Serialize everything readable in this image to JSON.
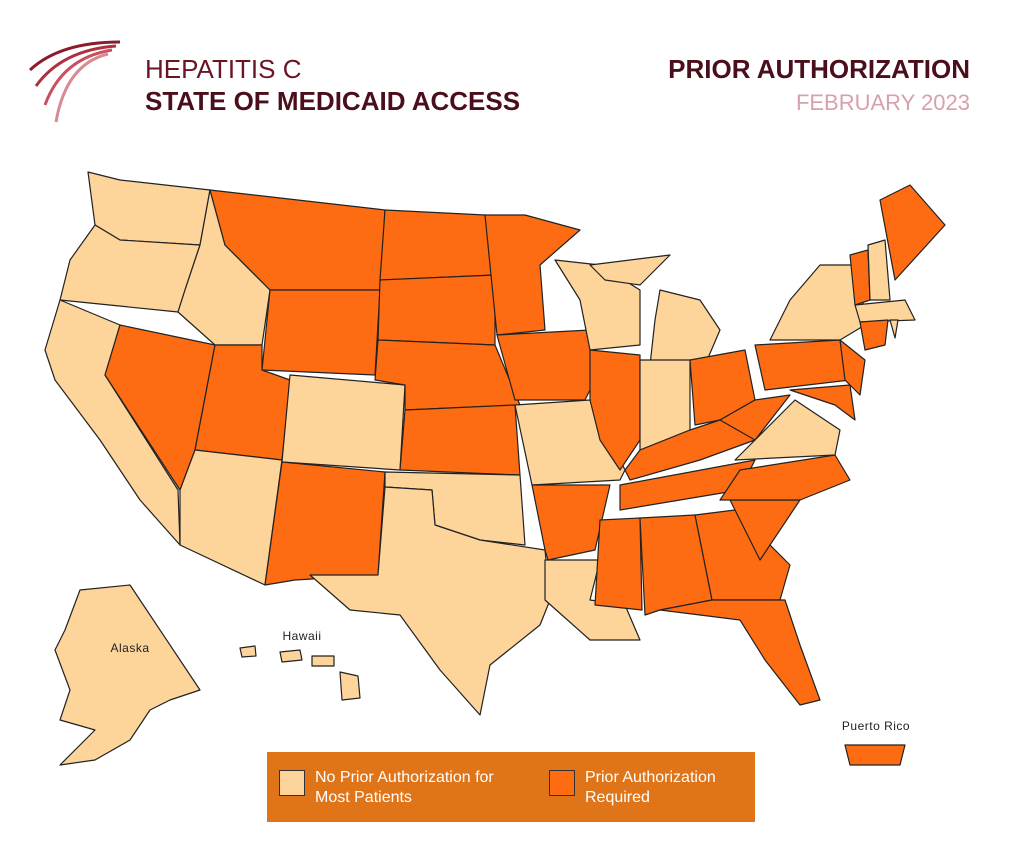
{
  "header": {
    "title_line1": "HEPATITIS C",
    "title_line2": "STATE OF MEDICAID ACCESS",
    "topic": "PRIOR AUTHORIZATION",
    "date": "FEBRUARY 2023"
  },
  "map": {
    "labels": [
      "Alaska",
      "Hawaii",
      "Puerto Rico"
    ]
  },
  "legend": {
    "background": "#e07418",
    "items": [
      {
        "label": "No Prior Authorization for Most Patients",
        "color": "#fdd49a"
      },
      {
        "label": "Prior Authorization Required",
        "color": "#fd6c12"
      }
    ]
  }
}
